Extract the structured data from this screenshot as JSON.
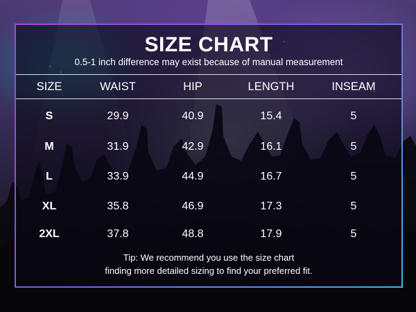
{
  "title": "SIZE CHART",
  "subtitle": "0.5-1 inch difference may exist because of manual measurement",
  "columns": [
    "SIZE",
    "WAIST",
    "HIP",
    "LENGTH",
    "INSEAM"
  ],
  "rows": [
    {
      "size": "S",
      "waist": "29.9",
      "hip": "40.9",
      "length": "15.4",
      "inseam": "5"
    },
    {
      "size": "M",
      "waist": "31.9",
      "hip": "42.9",
      "length": "16.1",
      "inseam": "5"
    },
    {
      "size": "L",
      "waist": "33.9",
      "hip": "44.9",
      "length": "16.7",
      "inseam": "5"
    },
    {
      "size": "XL",
      "waist": "35.8",
      "hip": "46.9",
      "length": "17.3",
      "inseam": "5"
    },
    {
      "size": "2XL",
      "waist": "37.8",
      "hip": "48.8",
      "length": "17.9",
      "inseam": "5"
    }
  ],
  "tip": {
    "line1": "Tip: We recommend you use the size chart",
    "line2": "finding more detailed sizing to find your preferred fit."
  },
  "colors": {
    "border_start": "#a247d8",
    "border_end": "#3fb6e8",
    "text": "#ffffff"
  }
}
